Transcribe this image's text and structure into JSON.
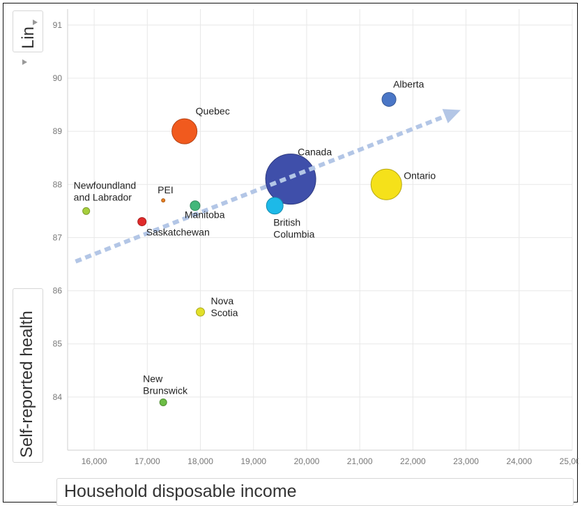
{
  "chart_data": {
    "type": "bubble",
    "xlabel": "Household disposable income",
    "ylabel": "Self-reported health",
    "scale_selector": "Lin",
    "xlim": [
      15500,
      25000
    ],
    "ylim": [
      83,
      91.3
    ],
    "x_ticks": [
      "16,000",
      "17,000",
      "18,000",
      "19,000",
      "20,000",
      "21,000",
      "22,000",
      "23,000",
      "24,000",
      "25,000"
    ],
    "y_ticks": [
      "84",
      "85",
      "86",
      "87",
      "88",
      "89",
      "90",
      "91"
    ],
    "grid": true,
    "points": [
      {
        "label": "Newfoundland and Labrador",
        "x": 15850,
        "y": 87.5,
        "size": 5,
        "color": "#a6cf3c"
      },
      {
        "label": "PEI",
        "x": 17300,
        "y": 87.7,
        "size": 2,
        "color": "#e67e22"
      },
      {
        "label": "Saskatchewan",
        "x": 16900,
        "y": 87.3,
        "size": 6,
        "color": "#e02a2a"
      },
      {
        "label": "Manitoba",
        "x": 17900,
        "y": 87.6,
        "size": 7,
        "color": "#43b77a"
      },
      {
        "label": "Quebec",
        "x": 17700,
        "y": 89.0,
        "size": 18,
        "color": "#f15a1e"
      },
      {
        "label": "Nova Scotia",
        "x": 18000,
        "y": 85.6,
        "size": 6,
        "color": "#e2e02a"
      },
      {
        "label": "New Brunswick",
        "x": 17300,
        "y": 83.9,
        "size": 5,
        "color": "#6cbd45"
      },
      {
        "label": "Canada",
        "x": 19700,
        "y": 88.1,
        "size": 36,
        "color": "#3f4faa"
      },
      {
        "label": "British Columbia",
        "x": 19400,
        "y": 87.6,
        "size": 12,
        "color": "#1db9e8"
      },
      {
        "label": "Ontario",
        "x": 21500,
        "y": 88.0,
        "size": 22,
        "color": "#f5e11a"
      },
      {
        "label": "Alberta",
        "x": 21550,
        "y": 89.6,
        "size": 10,
        "color": "#4a76c6"
      }
    ],
    "trend_arrow": {
      "from": [
        15650,
        86.55
      ],
      "to": [
        22900,
        89.4
      ],
      "color": "#b3c6e6",
      "style": "dotted"
    }
  }
}
